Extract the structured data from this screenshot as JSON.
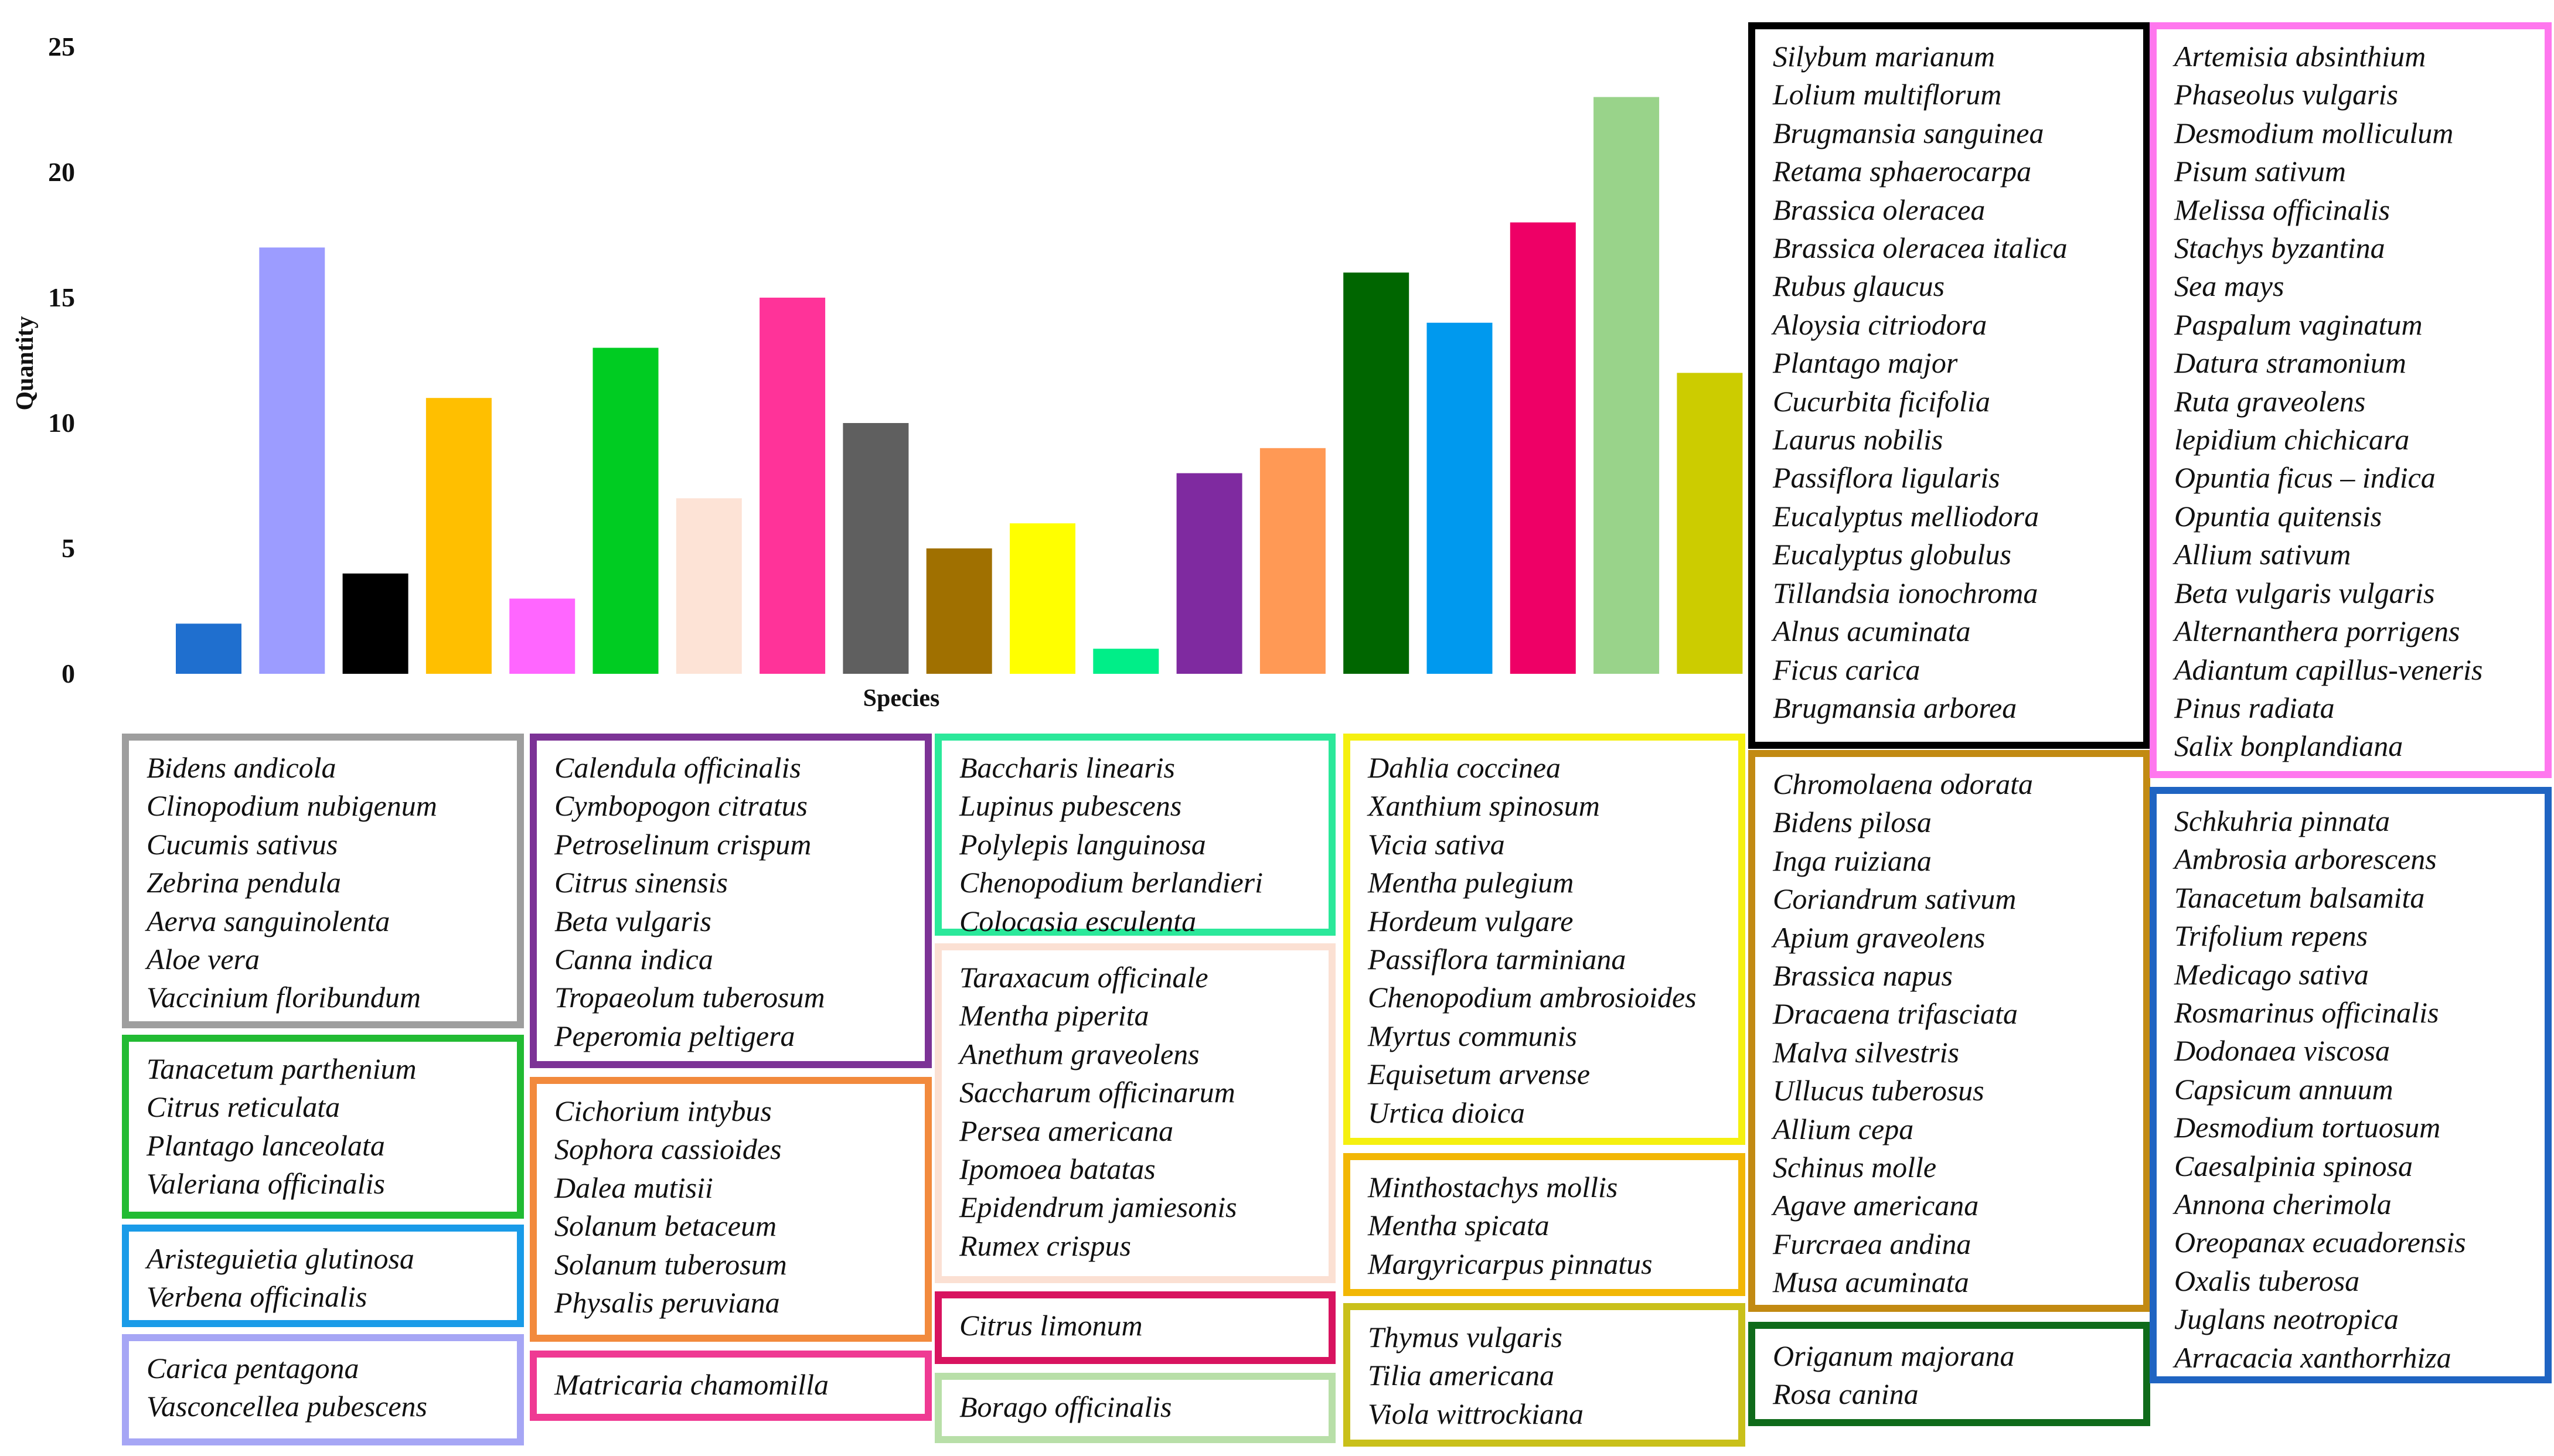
{
  "chart_data": {
    "type": "bar",
    "xlabel": "Species",
    "ylabel": "Quantity",
    "ylim": [
      0,
      25
    ],
    "yticks": [
      0,
      5,
      10,
      15,
      20,
      25
    ],
    "grid": false,
    "values": [
      2,
      17,
      4,
      11,
      3,
      13,
      7,
      15,
      10,
      5,
      6,
      1,
      8,
      9,
      16,
      14,
      18,
      23,
      12
    ],
    "colors": [
      "#1f6fcf",
      "#9c9cff",
      "#000000",
      "#ffbf00",
      "#ff66ff",
      "#00cc22",
      "#fde3d6",
      "#ff3399",
      "#5f5f5f",
      "#a07000",
      "#ffff00",
      "#00ee88",
      "#7f2aa0",
      "#ff9955",
      "#006600",
      "#0099ee",
      "#ee0066",
      "#99d38a",
      "#cccc00"
    ],
    "legend_groups": [
      {
        "color": "#9e9e9e",
        "items": [
          "Bidens andicola",
          "Clinopodium nubigenum",
          "Cucumis sativus",
          "Zebrina pendula",
          "Aerva sanguinolenta",
          "Aloe vera",
          "Vaccinium floribundum"
        ]
      },
      {
        "color": "#22bb33",
        "items": [
          "Tanacetum parthenium",
          "Citrus reticulata",
          "Plantago lanceolata",
          "Valeriana officinalis"
        ]
      },
      {
        "color": "#1a9be8",
        "items": [
          "Aristeguietia glutinosa",
          "Verbena officinalis"
        ]
      },
      {
        "color": "#a6a6f5",
        "items": [
          "Carica pentagona",
          "Vasconcellea pubescens"
        ]
      },
      {
        "color": "#7c3396",
        "items": [
          "Calendula officinalis",
          "Cymbopogon citratus",
          "Petroselinum crispum",
          "Citrus sinensis",
          "Beta vulgaris",
          "Canna indica",
          "Tropaeolum tuberosum",
          "Peperomia peltigera"
        ]
      },
      {
        "color": "#f28a3d",
        "items": [
          "Cichorium intybus",
          "Sophora cassioides",
          "Dalea mutisii",
          "Solanum betaceum",
          "Solanum tuberosum",
          "Physalis peruviana"
        ]
      },
      {
        "color": "#ef3a93",
        "items": [
          "Matricaria chamomilla"
        ]
      },
      {
        "color": "#2be89a",
        "items": [
          "Baccharis linearis",
          "Lupinus pubescens",
          "Polylepis languinosa",
          "Chenopodium berlandieri",
          "Colocasia esculenta"
        ]
      },
      {
        "color": "#fbe0d3",
        "items": [
          "Taraxacum officinale",
          "Mentha piperita",
          "Anethum graveolens",
          "Saccharum officinarum",
          "Persea americana",
          "Ipomoea batatas",
          "Epidendrum jamiesonis",
          "Rumex crispus"
        ]
      },
      {
        "color": "#d8135f",
        "items": [
          "Citrus limonum"
        ]
      },
      {
        "color": "#b8dfa8",
        "items": [
          "Borago officinalis"
        ]
      },
      {
        "color": "#f5f010",
        "items": [
          "Dahlia coccinea",
          "Xanthium spinosum",
          "Vicia sativa",
          "Mentha pulegium",
          "Hordeum vulgare",
          "Passiflora tarminiana",
          "Chenopodium ambrosioides",
          "Myrtus communis",
          "Equisetum arvense",
          "Urtica dioica"
        ]
      },
      {
        "color": "#f2b705",
        "items": [
          "Minthostachys mollis",
          "Mentha spicata",
          "Margyricarpus pinnatus"
        ]
      },
      {
        "color": "#c9c01a",
        "items": [
          "Thymus vulgaris",
          "Tilia americana",
          "Viola wittrockiana"
        ]
      },
      {
        "color": "#000000",
        "items": [
          "Silybum marianum",
          "Lolium multiflorum",
          "Brugmansia sanguinea",
          "Retama sphaerocarpa",
          "Brassica oleracea",
          "Brassica oleracea italica",
          "Rubus glaucus",
          "Aloysia citriodora",
          "Plantago major",
          "Cucurbita ficifolia",
          "Laurus nobilis",
          "Passiflora ligularis",
          "Eucalyptus melliodora",
          "Eucalyptus globulus",
          "Tillandsia ionochroma",
          "Alnus acuminata",
          "Ficus carica",
          "Brugmansia arborea"
        ]
      },
      {
        "color": "#c28a12",
        "items": [
          "Chromolaena odorata",
          "Bidens pilosa",
          "Inga ruiziana",
          "Coriandrum sativum",
          "Apium graveolens",
          "Brassica napus",
          "Dracaena trifasciata",
          "Malva silvestris",
          "Ullucus tuberosus",
          "Allium cepa",
          "Schinus molle",
          "Agave americana",
          "Furcraea andina",
          "Musa acuminata"
        ]
      },
      {
        "color": "#0f6b1a",
        "items": [
          "Origanum majorana",
          "Rosa canina"
        ]
      },
      {
        "color": "#ff77ee",
        "items": [
          "Artemisia absinthium",
          "Phaseolus vulgaris",
          "Desmodium molliculum",
          "Pisum sativum",
          "Melissa officinalis",
          "Stachys byzantina",
          "Sea mays",
          "Paspalum vaginatum",
          "Datura stramonium",
          "Ruta graveolens",
          "lepidium chichicara",
          "Opuntia ficus – indica",
          "Opuntia quitensis",
          "Allium sativum",
          "Beta vulgaris vulgaris",
          " Alternanthera porrigens",
          "Adiantum capillus-veneris",
          "Pinus radiata",
          "Salix bonplandiana"
        ]
      },
      {
        "color": "#1f64c2",
        "items": [
          "Schkuhria pinnata",
          "Ambrosia arborescens",
          "Tanacetum balsamita",
          "Trifolium repens",
          "Medicago sativa",
          "Rosmarinus officinalis",
          "Dodonaea viscosa",
          "Capsicum annuum",
          "Desmodium tortuosum",
          "Caesalpinia spinosa",
          "Annona cherimola",
          "Oreopanax ecuadorensis",
          "Oxalis tuberosa",
          "Juglans neotropica",
          "Arracacia xanthorrhiza"
        ]
      }
    ]
  }
}
